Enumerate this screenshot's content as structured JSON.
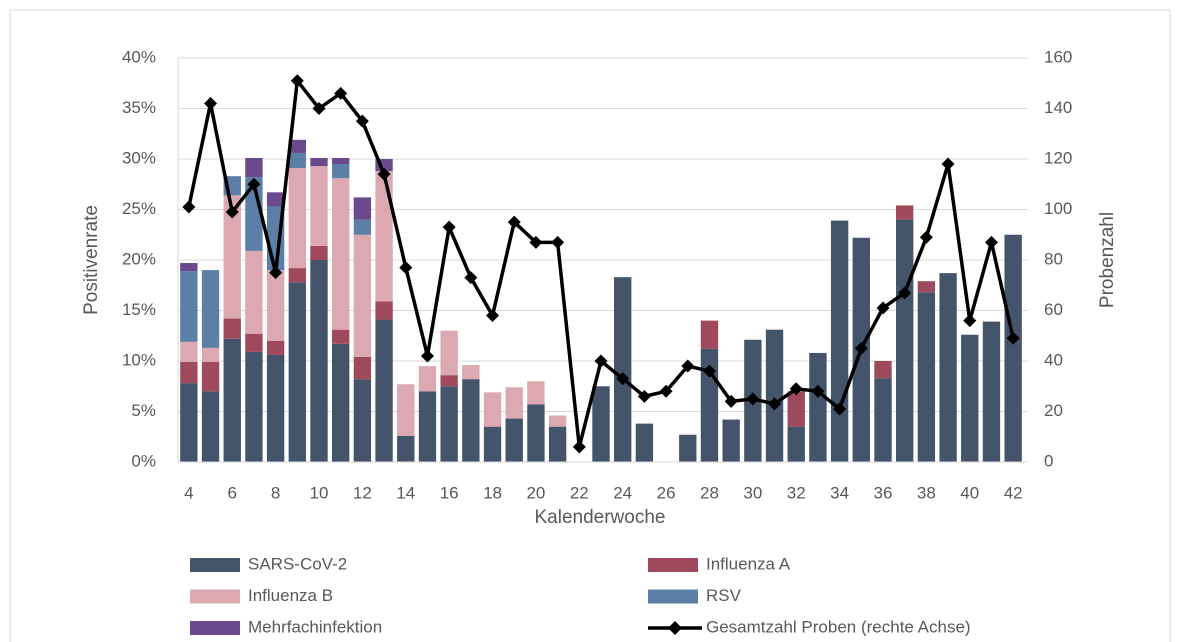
{
  "chart_data": {
    "type": "bar",
    "stacked": true,
    "grid": true,
    "legend": "bottom",
    "y_label": "Positivenrate",
    "y2_label": "Probenzahl",
    "x_label": "Kalenderwoche",
    "categories": [
      4,
      null,
      6,
      null,
      8,
      null,
      10,
      null,
      12,
      null,
      14,
      null,
      16,
      null,
      18,
      null,
      20,
      null,
      22,
      null,
      24,
      null,
      26,
      null,
      28,
      null,
      30,
      null,
      32,
      null,
      34,
      null,
      36,
      null,
      38,
      null,
      40,
      null,
      42
    ],
    "ylim": [
      0,
      40
    ],
    "yticks": [
      {
        "value": 0,
        "label": "0%"
      },
      {
        "value": 5,
        "label": "5%"
      },
      {
        "value": 10,
        "label": "10%"
      },
      {
        "value": 15,
        "label": "15%"
      },
      {
        "value": 20,
        "label": "20%"
      },
      {
        "value": 25,
        "label": "25%"
      },
      {
        "value": 30,
        "label": "30%"
      },
      {
        "value": 35,
        "label": "35%"
      },
      {
        "value": 40,
        "label": "40%"
      }
    ],
    "y2lim": [
      0,
      160
    ],
    "y2ticks": [
      0,
      20,
      40,
      60,
      80,
      100,
      120,
      140,
      160
    ],
    "series": [
      {
        "name": "SARS-CoV-2",
        "type": "bar",
        "color": "#44546a",
        "values": [
          7.8,
          7.0,
          12.2,
          10.9,
          10.6,
          17.8,
          20.0,
          11.7,
          8.2,
          14.1,
          2.6,
          7.0,
          7.5,
          8.2,
          3.5,
          4.3,
          5.7,
          3.5,
          0,
          7.5,
          18.3,
          3.8,
          0,
          2.7,
          11.2,
          4.2,
          12.1,
          13.1,
          3.5,
          10.8,
          23.9,
          22.2,
          8.3,
          24.0,
          16.8,
          18.7,
          12.6,
          13.9,
          22.5
        ]
      },
      {
        "name": "Influenza A",
        "type": "bar",
        "color": "#9e4a5c",
        "values": [
          2.1,
          2.9,
          2.0,
          1.8,
          1.4,
          1.4,
          1.4,
          1.4,
          2.2,
          1.8,
          0,
          0,
          1.1,
          0,
          0,
          0,
          0,
          0,
          0,
          0,
          0,
          0,
          0,
          0,
          2.8,
          0,
          0,
          0,
          3.5,
          0,
          0,
          0,
          1.7,
          1.4,
          1.1,
          0,
          0,
          0,
          0
        ]
      },
      {
        "name": "Influenza B",
        "type": "bar",
        "color": "#dca9b3",
        "values": [
          2.0,
          1.4,
          12.2,
          8.2,
          7.0,
          9.9,
          7.9,
          15.0,
          12.1,
          12.9,
          5.1,
          2.5,
          4.4,
          1.4,
          3.4,
          3.1,
          2.3,
          1.1,
          0,
          0,
          0,
          0,
          0,
          0,
          0,
          0,
          0,
          0,
          0,
          0,
          0,
          0,
          0,
          0,
          0,
          0,
          0,
          0,
          0
        ]
      },
      {
        "name": "RSV",
        "type": "bar",
        "color": "#5b7fa6",
        "values": [
          7.0,
          7.7,
          1.9,
          7.3,
          6.3,
          1.5,
          0,
          1.4,
          1.5,
          0,
          0,
          0,
          0,
          0,
          0,
          0,
          0,
          0,
          0,
          0,
          0,
          0,
          0,
          0,
          0,
          0,
          0,
          0,
          0,
          0,
          0,
          0,
          0,
          0,
          0,
          0,
          0,
          0,
          0
        ]
      },
      {
        "name": "Mehrfachinfektion",
        "type": "bar",
        "color": "#6a4a8c",
        "values": [
          0.8,
          0,
          0,
          1.9,
          1.4,
          1.3,
          0.8,
          0.6,
          2.2,
          1.2,
          0,
          0,
          0,
          0,
          0,
          0,
          0,
          0,
          0,
          0,
          0,
          0,
          0,
          0,
          0,
          0,
          0,
          0,
          0,
          0,
          0,
          0,
          0,
          0,
          0,
          0,
          0,
          0,
          0
        ]
      },
      {
        "name": "Gesamtzahl Proben (rechte Achse)",
        "type": "line",
        "axis": "y2",
        "color": "#000000",
        "values": [
          101,
          142,
          99,
          110,
          75,
          151,
          140,
          146,
          135,
          114,
          77,
          42,
          93,
          73,
          58,
          95,
          87,
          87,
          6,
          40,
          33,
          26,
          28,
          38,
          36,
          24,
          25,
          23,
          29,
          28,
          21,
          45,
          61,
          67,
          89,
          118,
          56,
          87,
          49
        ]
      }
    ]
  }
}
